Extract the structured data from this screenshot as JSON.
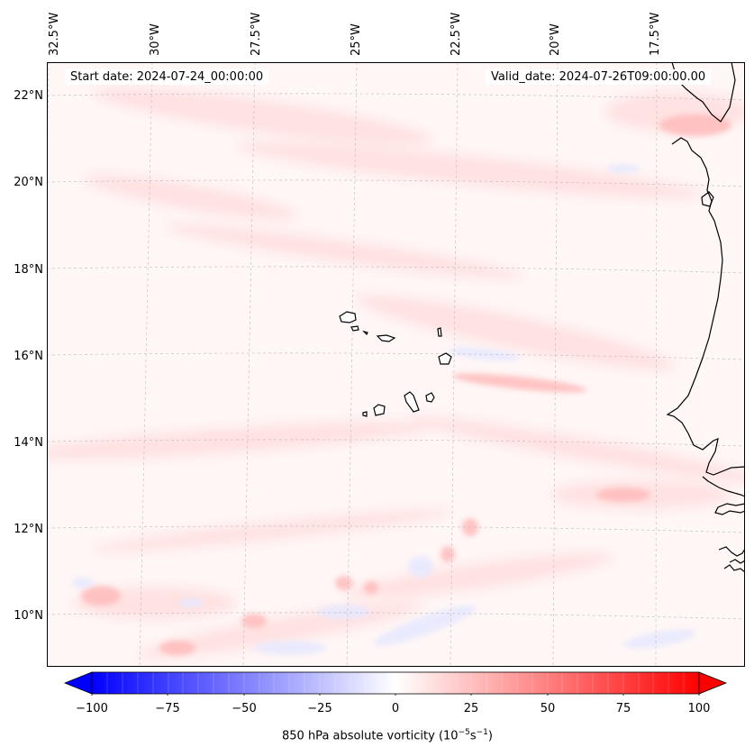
{
  "header": {
    "start_date": "Start date: 2024-07-24_00:00:00",
    "valid_date": "Valid_date: 2024-07-26T09:00:00.00"
  },
  "axes": {
    "lon_labels": [
      "32.5°W",
      "30°W",
      "27.5°W",
      "25°W",
      "22.5°W",
      "20°W",
      "17.5°W"
    ],
    "lat_labels": [
      "22°N",
      "20°N",
      "18°N",
      "16°N",
      "14°N",
      "12°N",
      "10°N"
    ]
  },
  "colorbar": {
    "ticks": [
      "−100",
      "−75",
      "−50",
      "−25",
      "0",
      "25",
      "50",
      "75",
      "100"
    ],
    "label": "850 hPa absolute vorticity (10",
    "label_exp1": "−5",
    "label_mid": "s",
    "label_exp2": "−1",
    "label_end": ")",
    "min_color": "#0000ff",
    "mid_color": "#ffffff",
    "max_color": "#ff0000"
  },
  "chart_data": {
    "type": "map",
    "title": "",
    "field": "850 hPa absolute vorticity",
    "units": "10^-5 s^-1",
    "color_range": [
      -100,
      100
    ],
    "colormap": "bwr",
    "extent": {
      "lon_min": -32.8,
      "lon_max": -15.8,
      "lat_min": 8.9,
      "lat_max": 22.8
    },
    "features": [
      "West African coastline (Mauritania/Senegal)",
      "Cape Verde Islands"
    ]
  }
}
